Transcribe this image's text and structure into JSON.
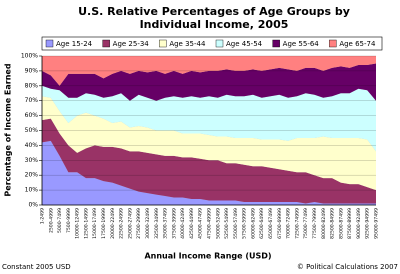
{
  "chart_data": {
    "type": "stacked_area",
    "title": "U.S. Relative Percentages of Age Groups by",
    "subtitle": "Individual Income, 2005",
    "x_label": "Annual Income Range (USD)",
    "y_label": "Percentage of Income Earned",
    "footnote_left": "Constant 2005 USD",
    "footnote_right": "© Political Calculations 2007",
    "categories": [
      "1-2499",
      "2500-4999",
      "5000-7499",
      "7500-9999",
      "10000-12499",
      "12500-14999",
      "15000-17499",
      "17500-19999",
      "20000-22499",
      "22500-24999",
      "25000-27499",
      "27500-29999",
      "30000-32499",
      "32500-34999",
      "35000-37499",
      "37500-39999",
      "40000-42499",
      "42500-44999",
      "45000-47499",
      "47500-49999",
      "50000-52499",
      "52500-54999",
      "55000-57499",
      "57500-59999",
      "60000-62499",
      "62500-64999",
      "65000-67499",
      "67500-69999",
      "70000-72499",
      "72500-74999",
      "75000-77499",
      "77500-79999",
      "80000-82499",
      "82500-84999",
      "85000-87499",
      "87500-89999",
      "90000-92499",
      "92500-94999",
      "95000-97499"
    ],
    "ylim": [
      0,
      100
    ],
    "yticks": [
      {
        "value": 0,
        "label": "0%"
      },
      {
        "value": 10,
        "label": "10%"
      },
      {
        "value": 20,
        "label": "20%"
      },
      {
        "value": 30,
        "label": "30%"
      },
      {
        "value": 40,
        "label": "40%"
      },
      {
        "value": 50,
        "label": "50%"
      },
      {
        "value": 60,
        "label": "60%"
      },
      {
        "value": 70,
        "label": "70%"
      },
      {
        "value": 80,
        "label": "80%"
      },
      {
        "value": 90,
        "label": "90%"
      },
      {
        "value": 100,
        "label": "100%"
      }
    ],
    "grid": true,
    "legend_position": "top",
    "series": [
      {
        "name": "Age 15-24",
        "color": "#9999ff",
        "values": [
          42,
          43,
          33,
          22,
          22,
          18,
          18,
          16,
          15,
          13,
          11,
          9,
          8,
          7,
          6,
          5,
          5,
          4,
          4,
          3,
          3,
          3,
          3,
          2,
          2,
          2,
          2,
          2,
          2,
          2,
          1,
          2,
          1,
          1,
          1,
          1,
          1,
          1,
          1
        ]
      },
      {
        "name": "Age 25-34",
        "color": "#993366",
        "values": [
          15,
          15,
          15,
          18,
          13,
          20,
          22,
          23,
          24,
          25,
          25,
          27,
          27,
          27,
          27,
          28,
          27,
          28,
          27,
          27,
          27,
          25,
          25,
          25,
          24,
          24,
          23,
          22,
          21,
          20,
          21,
          18,
          17,
          17,
          14,
          13,
          13,
          11,
          9
        ]
      },
      {
        "name": "Age 35-44",
        "color": "#ffffcc",
        "values": [
          16,
          14,
          15,
          15,
          25,
          24,
          20,
          19,
          16,
          18,
          16,
          17,
          17,
          16,
          17,
          17,
          16,
          16,
          17,
          17,
          16,
          18,
          17,
          18,
          19,
          18,
          19,
          20,
          20,
          23,
          23,
          25,
          28,
          27,
          30,
          31,
          31,
          32,
          26
        ]
      },
      {
        "name": "Age 45-54",
        "color": "#ccffff",
        "values": [
          7,
          6,
          14,
          17,
          12,
          13,
          14,
          14,
          18,
          19,
          18,
          21,
          20,
          20,
          22,
          23,
          24,
          25,
          24,
          26,
          26,
          28,
          28,
          28,
          29,
          28,
          29,
          30,
          29,
          28,
          30,
          29,
          26,
          28,
          30,
          30,
          33,
          33,
          34
        ]
      },
      {
        "name": "Age 55-64",
        "color": "#660066",
        "values": [
          10,
          9,
          3,
          16,
          16,
          13,
          14,
          13,
          15,
          15,
          18,
          16,
          17,
          20,
          16,
          17,
          16,
          17,
          17,
          17,
          18,
          17,
          17,
          17,
          17,
          18,
          18,
          18,
          19,
          17,
          17,
          18,
          18,
          19,
          18,
          17,
          16,
          17,
          25
        ]
      },
      {
        "name": "Age 65-74",
        "color": "#ff8080",
        "values": [
          10,
          13,
          20,
          12,
          12,
          12,
          12,
          15,
          12,
          10,
          12,
          10,
          11,
          10,
          12,
          10,
          12,
          10,
          11,
          10,
          10,
          9,
          10,
          10,
          9,
          10,
          9,
          8,
          9,
          10,
          8,
          8,
          10,
          8,
          7,
          8,
          6,
          6,
          5
        ]
      }
    ]
  }
}
